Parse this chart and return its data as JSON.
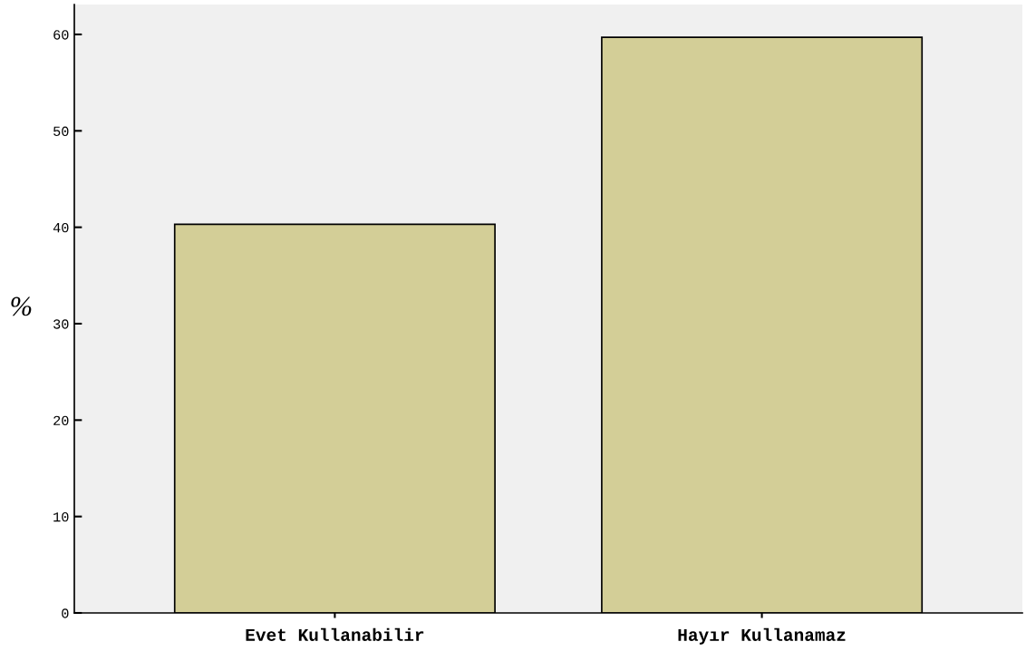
{
  "chart_data": {
    "type": "bar",
    "ylabel": "%",
    "categories": [
      "Evet Kullanabilir",
      "Hayır Kullanamaz"
    ],
    "values": [
      40.3,
      59.7
    ],
    "color": "#d3ce97",
    "ylim": [
      0,
      63.1
    ],
    "yticks": [
      0,
      10,
      20,
      30,
      40,
      50,
      60
    ],
    "grid": false,
    "legend": false
  }
}
